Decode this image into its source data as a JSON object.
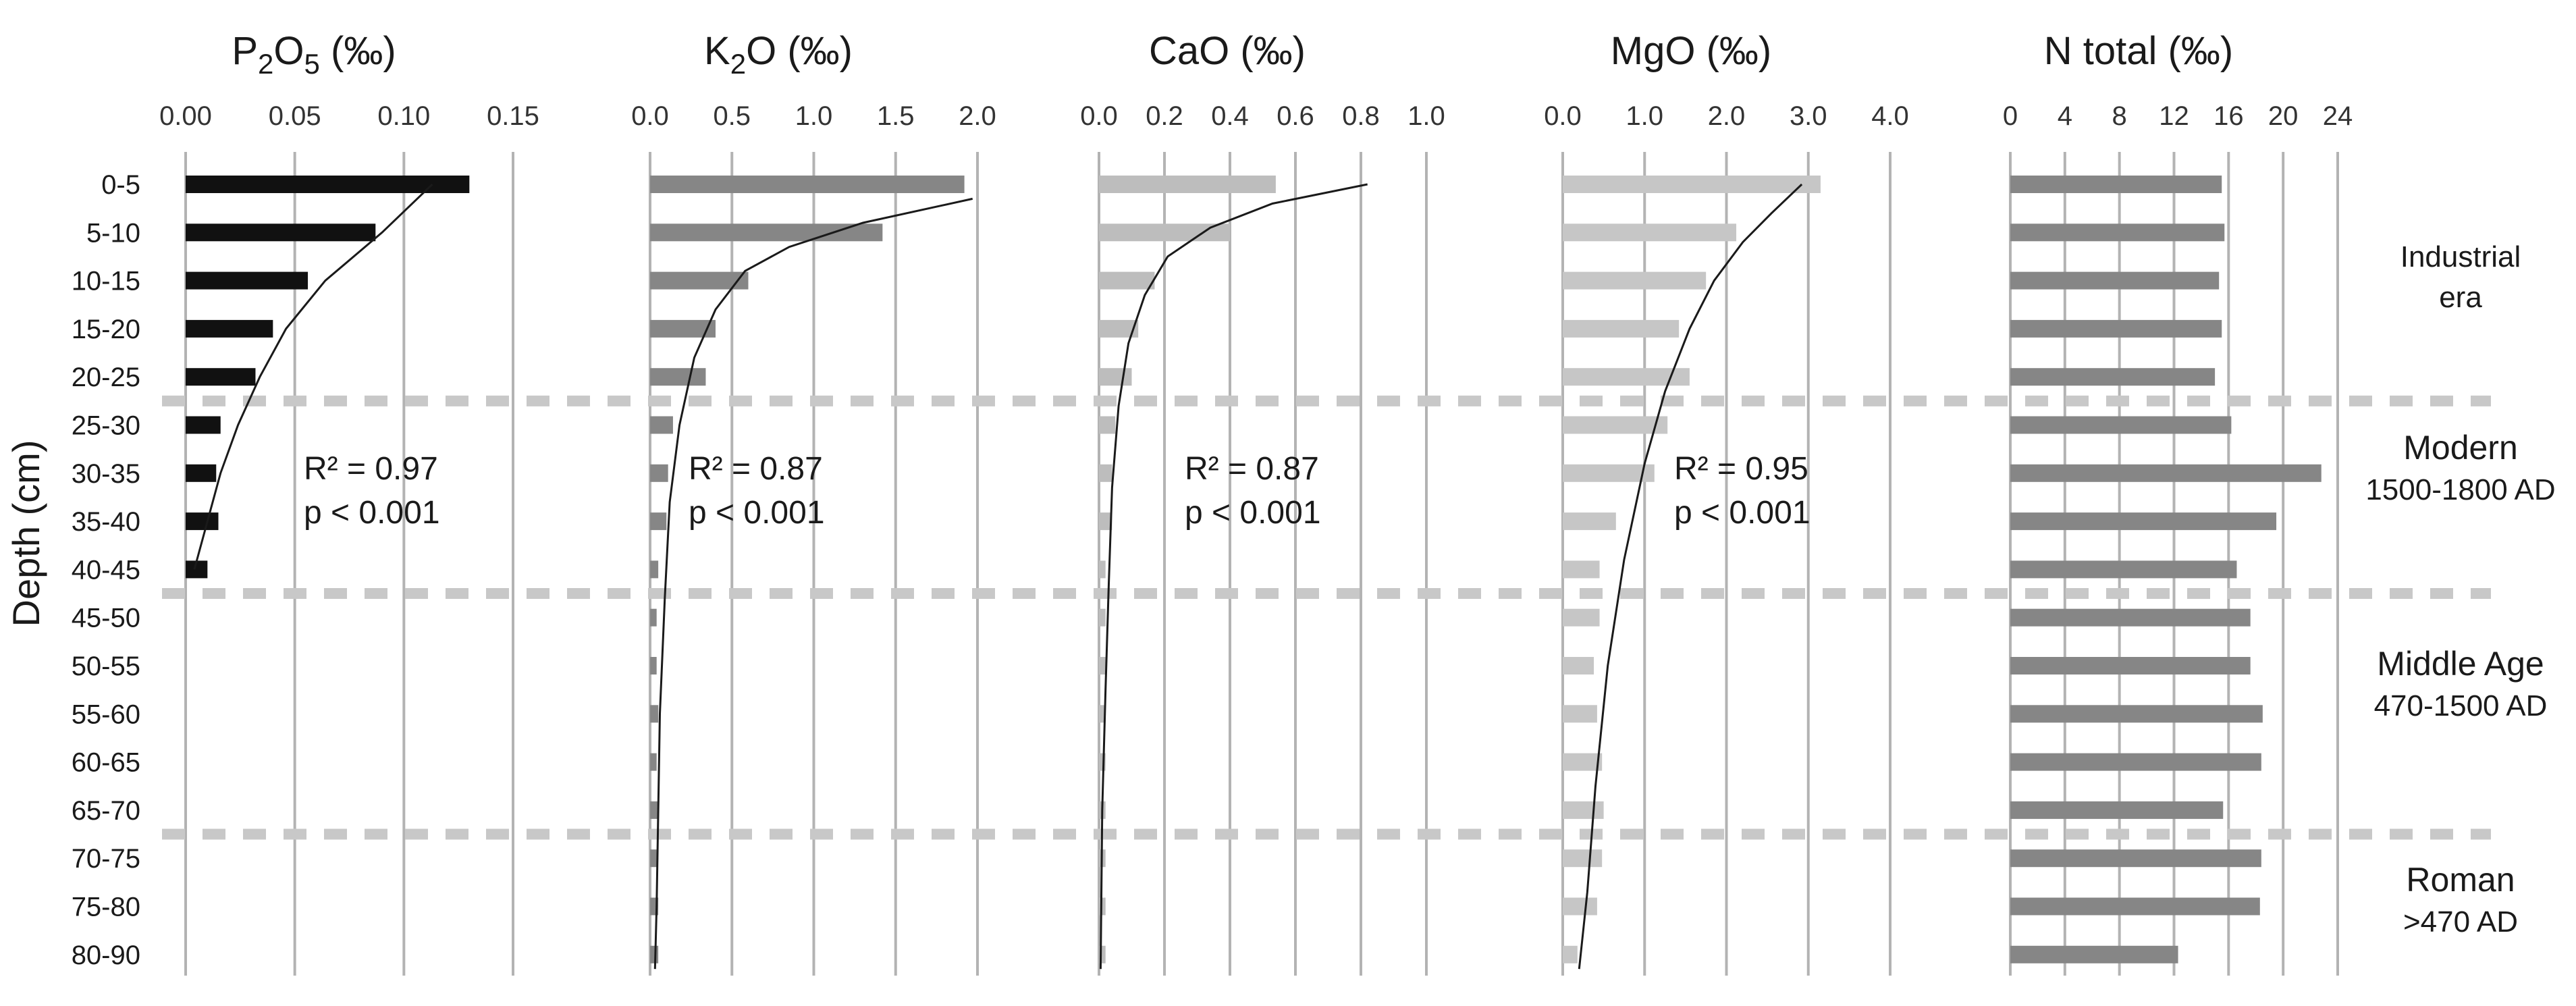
{
  "chart_data": {
    "type": "bar",
    "orientation": "horizontal",
    "ylabel": "Depth (cm)",
    "categories": [
      "0-5",
      "5-10",
      "10-15",
      "15-20",
      "20-25",
      "25-30",
      "30-35",
      "35-40",
      "40-45",
      "45-50",
      "50-55",
      "55-60",
      "60-65",
      "65-70",
      "70-75",
      "75-80",
      "80-90"
    ],
    "panels": [
      {
        "key": "p2o5",
        "title_main": "P",
        "title_sub1": "2",
        "title_mid": "O",
        "title_sub2": "5",
        "title_unit": " (‰)",
        "color": "#111111",
        "xlim": [
          0,
          0.15
        ],
        "ticks": [
          "0.00",
          "0.05",
          "0.10",
          "0.15"
        ],
        "tick_values": [
          0,
          0.05,
          0.1,
          0.15
        ],
        "values": [
          0.13,
          0.087,
          0.056,
          0.04,
          0.032,
          0.016,
          0.014,
          0.015,
          0.01
        ],
        "curve": [
          [
            0.113,
            0
          ],
          [
            0.09,
            1
          ],
          [
            0.064,
            2
          ],
          [
            0.046,
            3
          ],
          [
            0.034,
            4
          ],
          [
            0.024,
            5
          ],
          [
            0.016,
            6
          ],
          [
            0.01,
            7
          ],
          [
            0.004,
            8
          ]
        ],
        "r2": "R² = 0.97",
        "p": "p < 0.001"
      },
      {
        "key": "k2o",
        "title_main": "K",
        "title_sub1": "2",
        "title_mid": "O",
        "title_sub2": "",
        "title_unit": " (‰)",
        "color": "#868686",
        "xlim": [
          0,
          2.0
        ],
        "ticks": [
          "0.0",
          "0.5",
          "1.0",
          "1.5",
          "2.0"
        ],
        "tick_values": [
          0,
          0.5,
          1.0,
          1.5,
          2.0
        ],
        "values": [
          1.92,
          1.42,
          0.6,
          0.4,
          0.34,
          0.14,
          0.11,
          0.1,
          0.05,
          0.04,
          0.04,
          0.05,
          0.04,
          0.05,
          0.04,
          0.05,
          0.05
        ],
        "curve": [
          [
            1.97,
            0.3
          ],
          [
            1.3,
            0.8
          ],
          [
            0.85,
            1.3
          ],
          [
            0.58,
            1.8
          ],
          [
            0.4,
            2.6
          ],
          [
            0.27,
            3.6
          ],
          [
            0.18,
            5
          ],
          [
            0.12,
            6.6
          ],
          [
            0.09,
            8.6
          ],
          [
            0.06,
            11
          ],
          [
            0.05,
            13
          ],
          [
            0.04,
            15
          ],
          [
            0.03,
            16.3
          ]
        ],
        "r2": "R² = 0.87",
        "p": "p < 0.001"
      },
      {
        "key": "cao",
        "title_main": "CaO",
        "title_sub1": "",
        "title_mid": "",
        "title_sub2": "",
        "title_unit": " (‰)",
        "color": "#bdbdbd",
        "xlim": [
          0,
          1.0
        ],
        "ticks": [
          "0.0",
          "0.2",
          "0.4",
          "0.6",
          "0.8",
          "1.0"
        ],
        "tick_values": [
          0,
          0.2,
          0.4,
          0.6,
          0.8,
          1.0
        ],
        "values": [
          0.54,
          0.4,
          0.17,
          0.12,
          0.1,
          0.05,
          0.04,
          0.04,
          0.02,
          0.02,
          0.02,
          0.02,
          0.02,
          0.02,
          0.02,
          0.02,
          0.02
        ],
        "curve": [
          [
            0.82,
            0
          ],
          [
            0.53,
            0.4
          ],
          [
            0.34,
            0.9
          ],
          [
            0.21,
            1.5
          ],
          [
            0.14,
            2.3
          ],
          [
            0.09,
            3.3
          ],
          [
            0.06,
            4.6
          ],
          [
            0.04,
            6.3
          ],
          [
            0.03,
            8.3
          ],
          [
            0.02,
            10.5
          ],
          [
            0.01,
            13
          ],
          [
            0.005,
            16.3
          ]
        ],
        "r2": "R² = 0.87",
        "p": "p < 0.001"
      },
      {
        "key": "mgo",
        "title_main": "MgO",
        "title_sub1": "",
        "title_mid": "",
        "title_sub2": "",
        "title_unit": " (‰)",
        "color": "#c6c6c6",
        "xlim": [
          0,
          4.0
        ],
        "ticks": [
          "0.0",
          "1.0",
          "2.0",
          "3.0",
          "4.0"
        ],
        "tick_values": [
          0,
          1.0,
          2.0,
          3.0,
          4.0
        ],
        "values": [
          3.15,
          2.12,
          1.75,
          1.42,
          1.55,
          1.28,
          1.12,
          0.65,
          0.45,
          0.45,
          0.38,
          0.42,
          0.48,
          0.5,
          0.48,
          0.42,
          0.18
        ],
        "curve": [
          [
            2.92,
            0
          ],
          [
            2.55,
            0.6
          ],
          [
            2.2,
            1.2
          ],
          [
            1.85,
            2
          ],
          [
            1.55,
            3
          ],
          [
            1.25,
            4.3
          ],
          [
            1.0,
            5.8
          ],
          [
            0.75,
            7.8
          ],
          [
            0.55,
            10
          ],
          [
            0.4,
            12.5
          ],
          [
            0.3,
            14.7
          ],
          [
            0.2,
            16.3
          ]
        ],
        "r2": "R² = 0.95",
        "p": "p < 0.001"
      },
      {
        "key": "ntotal",
        "title_main": "N total",
        "title_sub1": "",
        "title_mid": "",
        "title_sub2": "",
        "title_unit": " (‰)",
        "color": "#868686",
        "xlim": [
          0,
          24
        ],
        "ticks": [
          "0",
          "4",
          "8",
          "12",
          "16",
          "20",
          "24"
        ],
        "tick_values": [
          0,
          4,
          8,
          12,
          16,
          20,
          24
        ],
        "values": [
          15.5,
          15.7,
          15.3,
          15.5,
          15.0,
          16.2,
          22.8,
          19.5,
          16.6,
          17.6,
          17.6,
          18.5,
          18.4,
          15.6,
          18.4,
          18.3,
          12.3
        ],
        "curve": [],
        "r2": "",
        "p": ""
      }
    ],
    "period_boundaries_after": [
      "20-25",
      "40-45",
      "65-70"
    ],
    "periods": [
      {
        "line1": "Industrial",
        "line2": "era"
      },
      {
        "line1": "Modern",
        "line2": "1500-1800 AD"
      },
      {
        "line1": "Middle Age",
        "line2": "470-1500 AD"
      },
      {
        "line1": "Roman",
        "line2": ">470 AD"
      }
    ]
  }
}
